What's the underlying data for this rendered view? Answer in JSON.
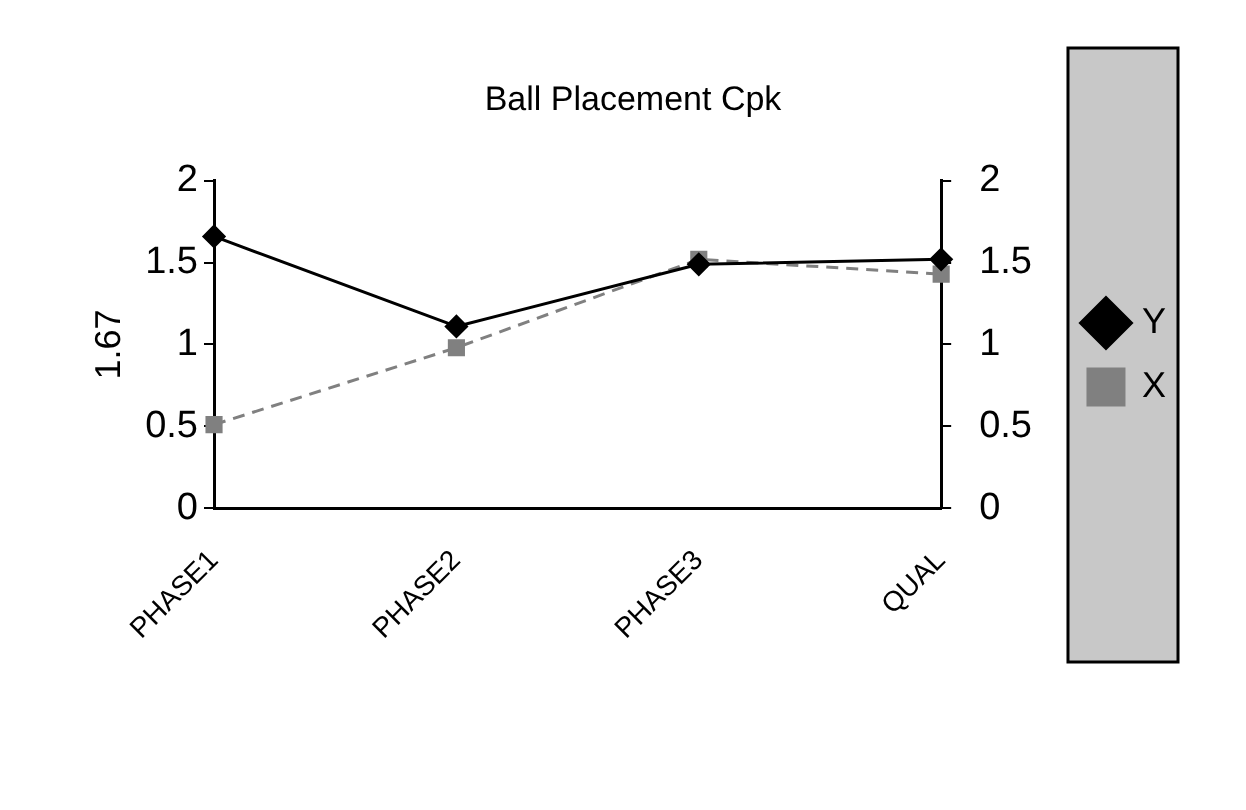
{
  "chart_data": {
    "type": "line",
    "title": "Ball Placement Cpk",
    "ylabel": "1.67",
    "categories": [
      "PHASE1",
      "PHASE2",
      "PHASE3",
      "QUAL"
    ],
    "series": [
      {
        "name": "X",
        "color": "#808080",
        "values": [
          0.51,
          0.98,
          1.52,
          1.43
        ],
        "marker": "square",
        "line_style": "dashed"
      },
      {
        "name": "Y",
        "color": "#000000",
        "values": [
          1.66,
          1.11,
          1.49,
          1.52
        ],
        "marker": "diamond",
        "line_style": "solid"
      }
    ],
    "ylim": [
      0,
      2
    ],
    "yticks": [
      0,
      0.5,
      1,
      1.5,
      2
    ],
    "y2lim": [
      0,
      2
    ],
    "y2ticks": [
      0,
      0.5,
      1,
      1.5,
      2
    ],
    "grid": false,
    "legend": "right"
  }
}
